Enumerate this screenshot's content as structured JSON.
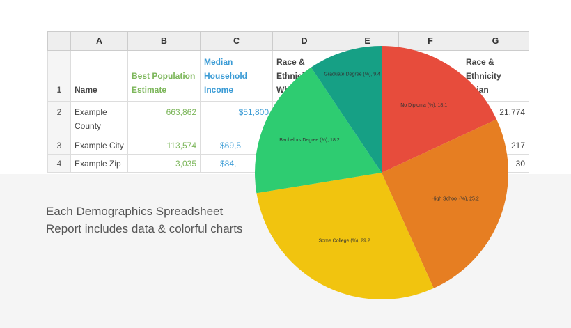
{
  "sheet": {
    "columns": [
      "",
      "A",
      "B",
      "C",
      "D",
      "E",
      "F",
      "G"
    ],
    "header_row": {
      "num": "1",
      "name": "Name",
      "b": "Best Population Estimate",
      "c": "Median Household Income",
      "d": "Race & Ethnicity White",
      "g": "Race & Ethnicity Asian"
    },
    "rows": [
      {
        "num": "2",
        "name": "Example County",
        "b": "663,862",
        "c": "$51,800",
        "g": "21,774"
      },
      {
        "num": "3",
        "name": "Example City",
        "b": "113,574",
        "c": "$69,5",
        "g": "217"
      },
      {
        "num": "4",
        "name": "Example Zip",
        "b": "3,035",
        "c": "$84,",
        "g": "30"
      }
    ]
  },
  "caption": {
    "line1": "Each Demographics Spreadsheet",
    "line2": "Report includes data & colorful charts"
  },
  "chart_data": {
    "type": "pie",
    "start": "top, clockwise",
    "slices": [
      {
        "label": "No Diploma (%),  18.1",
        "value": 18.1,
        "color": "#e74c3c"
      },
      {
        "label": "High School (%), 25.2",
        "value": 25.2,
        "color": "#e67e22"
      },
      {
        "label": "Some College (%), 29.2",
        "value": 29.2,
        "color": "#f1c40f"
      },
      {
        "label": "Bachelors Degree (%), 18.2",
        "value": 18.2,
        "color": "#2ecc71"
      },
      {
        "label": "Graduate Degree (%), 9.4",
        "value": 9.4,
        "color": "#16a085"
      }
    ]
  }
}
